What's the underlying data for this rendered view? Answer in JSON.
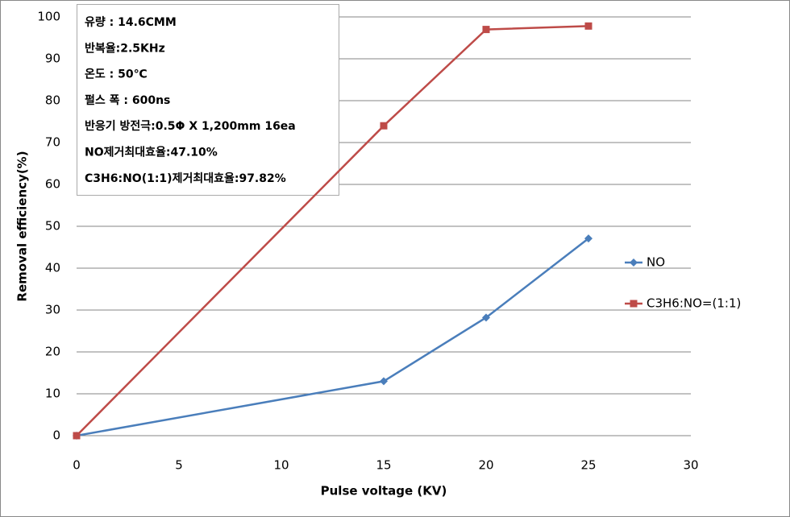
{
  "chart_data": {
    "type": "line",
    "x_label": "Pulse voltage (KV)",
    "y_label": "Removal efficiency(%)",
    "x": [
      0,
      15,
      20,
      25
    ],
    "series": [
      {
        "name": "NO",
        "color": "#4a7ebb",
        "marker": "diamond",
        "values": [
          0,
          13,
          28.2,
          47.1
        ]
      },
      {
        "name": "C3H6:NO=(1:1)",
        "color": "#be4b48",
        "marker": "square",
        "values": [
          0,
          74,
          97,
          97.82
        ]
      }
    ],
    "xlim": [
      0,
      30
    ],
    "xticks": [
      0,
      5,
      10,
      15,
      20,
      25,
      30
    ],
    "ylim": [
      0,
      100
    ],
    "yticks": [
      0,
      10,
      20,
      30,
      40,
      50,
      60,
      70,
      80,
      90,
      100
    ],
    "grid": true,
    "legend": "right",
    "annotations": [
      "유량 : 14.6CMM",
      "반복율:2.5KHz",
      "온도 : 50℃",
      "펄스 폭 : 600ns",
      "반응기 방전극:0.5Φ X 1,200mm  16ea",
      "NO제거최대효율:47.10%",
      "C3H6:NO(1:1)제거최대효율:97.82%"
    ]
  }
}
